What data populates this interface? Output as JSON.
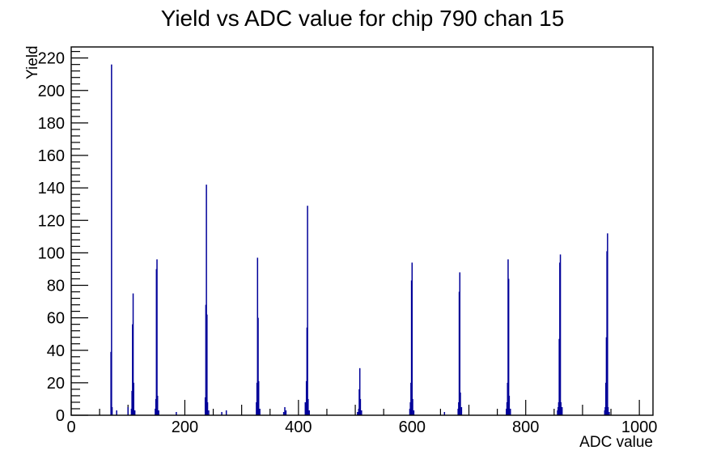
{
  "chart_data": {
    "type": "bar",
    "title": "Yield vs ADC value for chip 790 chan 15",
    "xlabel": "ADC value",
    "ylabel": "Yield",
    "x_range": [
      0,
      1024
    ],
    "y_range": [
      0,
      226.8
    ],
    "x_tick_labels": [
      "0",
      "200",
      "400",
      "600",
      "800",
      "1000"
    ],
    "x_major_step": 200,
    "x_medium_step": 100,
    "x_minor_step": 50,
    "y_tick_labels": [
      "0",
      "20",
      "40",
      "60",
      "80",
      "100",
      "120",
      "140",
      "160",
      "180",
      "200",
      "220"
    ],
    "y_major_step": 20,
    "y_minor_step": 4,
    "grid": false,
    "legend": "none",
    "bar_color": "#000099",
    "frame_color": "#000000",
    "text_color": "#000000",
    "bars": [
      [
        70,
        39
      ],
      [
        71,
        216
      ],
      [
        72,
        5
      ],
      [
        80,
        3
      ],
      [
        100,
        5
      ],
      [
        106,
        4
      ],
      [
        107,
        15
      ],
      [
        108,
        56
      ],
      [
        109,
        75
      ],
      [
        110,
        20
      ],
      [
        112,
        3
      ],
      [
        148,
        4
      ],
      [
        149,
        10
      ],
      [
        150,
        90
      ],
      [
        151,
        96
      ],
      [
        152,
        12
      ],
      [
        154,
        3
      ],
      [
        185,
        2
      ],
      [
        236,
        11
      ],
      [
        237,
        68
      ],
      [
        238,
        142
      ],
      [
        239,
        62
      ],
      [
        240,
        8
      ],
      [
        242,
        3
      ],
      [
        265,
        2
      ],
      [
        273,
        3
      ],
      [
        326,
        8
      ],
      [
        327,
        20
      ],
      [
        328,
        97
      ],
      [
        329,
        60
      ],
      [
        330,
        21
      ],
      [
        332,
        4
      ],
      [
        374,
        2
      ],
      [
        376,
        5
      ],
      [
        378,
        3
      ],
      [
        412,
        8
      ],
      [
        414,
        21
      ],
      [
        415,
        54
      ],
      [
        416,
        129
      ],
      [
        417,
        10
      ],
      [
        419,
        3
      ],
      [
        504,
        2
      ],
      [
        506,
        4
      ],
      [
        507,
        16
      ],
      [
        508,
        29
      ],
      [
        509,
        10
      ],
      [
        511,
        3
      ],
      [
        596,
        4
      ],
      [
        597,
        8
      ],
      [
        598,
        20
      ],
      [
        599,
        83
      ],
      [
        600,
        94
      ],
      [
        601,
        10
      ],
      [
        603,
        3
      ],
      [
        657,
        2
      ],
      [
        681,
        4
      ],
      [
        682,
        8
      ],
      [
        683,
        76
      ],
      [
        684,
        88
      ],
      [
        685,
        14
      ],
      [
        687,
        5
      ],
      [
        766,
        4
      ],
      [
        767,
        8
      ],
      [
        768,
        20
      ],
      [
        769,
        96
      ],
      [
        770,
        84
      ],
      [
        771,
        12
      ],
      [
        773,
        4
      ],
      [
        856,
        3
      ],
      [
        857,
        5
      ],
      [
        858,
        8
      ],
      [
        859,
        47
      ],
      [
        860,
        94
      ],
      [
        861,
        99
      ],
      [
        862,
        8
      ],
      [
        864,
        5
      ],
      [
        939,
        3
      ],
      [
        940,
        5
      ],
      [
        941,
        20
      ],
      [
        942,
        48
      ],
      [
        943,
        101
      ],
      [
        944,
        112
      ],
      [
        945,
        5
      ],
      [
        947,
        2
      ]
    ]
  }
}
